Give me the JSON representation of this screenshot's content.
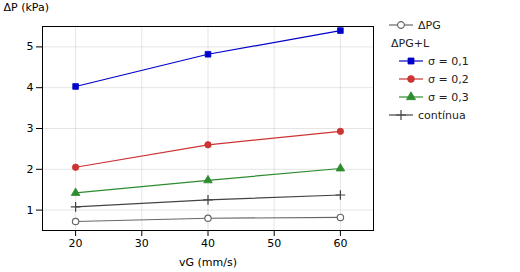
{
  "chart_data": {
    "type": "line",
    "x": [
      20,
      40,
      60
    ],
    "series": [
      {
        "name": "ΔPG",
        "color": "#666666",
        "marker": "circle-open",
        "values": [
          0.72,
          0.8,
          0.82
        ]
      },
      {
        "name": "σ = 0,1",
        "legend_group": "ΔPG+L",
        "color": "#0000cc",
        "marker": "square",
        "values": [
          4.03,
          4.82,
          5.4
        ]
      },
      {
        "name": "σ = 0,2",
        "legend_group": "ΔPG+L",
        "color": "#cc3333",
        "marker": "circle",
        "values": [
          2.05,
          2.6,
          2.93
        ]
      },
      {
        "name": "σ = 0,3",
        "legend_group": "ΔPG+L",
        "color": "#2e8b2e",
        "marker": "triangle",
        "values": [
          1.42,
          1.73,
          2.02
        ]
      },
      {
        "name": "contínua",
        "color": "#444444",
        "marker": "plus",
        "values": [
          1.08,
          1.25,
          1.37
        ]
      }
    ],
    "xlabel": "vG (mm/s)",
    "ylabel": "ΔP (kPa)",
    "xlim": [
      15,
      65
    ],
    "ylim": [
      0.5,
      5.5
    ],
    "xticks": [
      20,
      30,
      40,
      50,
      60
    ],
    "yticks": [
      1,
      2,
      3,
      4,
      5
    ],
    "grid": true,
    "legend": "right"
  }
}
